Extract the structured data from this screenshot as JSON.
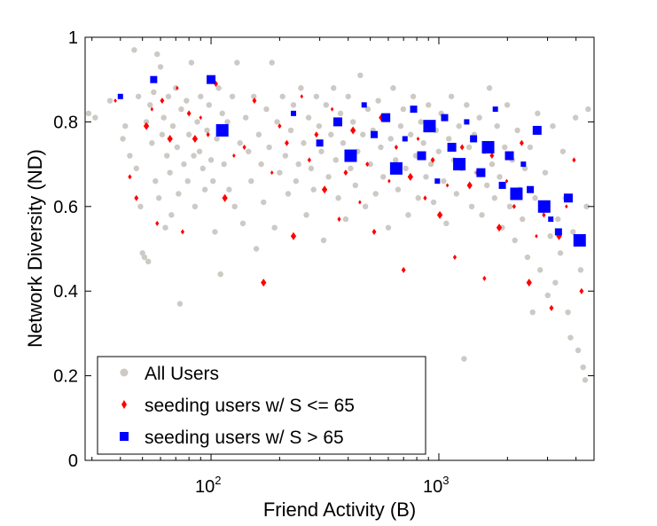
{
  "chart_data": {
    "type": "scatter",
    "title": "",
    "xlabel": "Friend Activity (B)",
    "ylabel": "Network Diversity (ND)",
    "xscale": "log",
    "xlim": [
      28,
      4800
    ],
    "ylim": [
      0,
      1
    ],
    "grid": false,
    "legend_position": "bottom-left",
    "xticks": [
      {
        "base": "10",
        "exp": "2",
        "value": 100
      },
      {
        "base": "10",
        "exp": "3",
        "value": 1000
      }
    ],
    "yticks": [
      {
        "label": "0",
        "value": 0
      },
      {
        "label": "0.2",
        "value": 0.2
      },
      {
        "label": "0.4",
        "value": 0.4
      },
      {
        "label": "0.6",
        "value": 0.6
      },
      {
        "label": "0.8",
        "value": 0.8
      },
      {
        "label": "1",
        "value": 1
      }
    ],
    "series": [
      {
        "name": "All Users",
        "marker": "circle",
        "color": "#cdc9c4",
        "points": [
          [
            29,
            0.82
          ],
          [
            31,
            0.81
          ],
          [
            36,
            0.85
          ],
          [
            41,
            0.76
          ],
          [
            42,
            0.79
          ],
          [
            44,
            0.72
          ],
          [
            46,
            0.97
          ],
          [
            47,
            0.69
          ],
          [
            48,
            0.86
          ],
          [
            49,
            0.6
          ],
          [
            50,
            0.49
          ],
          [
            51,
            0.48
          ],
          [
            52,
            0.8
          ],
          [
            53,
            0.47
          ],
          [
            54,
            0.84
          ],
          [
            55,
            0.75
          ],
          [
            56,
            0.87
          ],
          [
            57,
            0.66
          ],
          [
            58,
            0.96
          ],
          [
            59,
            0.62
          ],
          [
            60,
            0.93
          ],
          [
            61,
            0.77
          ],
          [
            62,
            0.81
          ],
          [
            63,
            0.55
          ],
          [
            64,
            0.72
          ],
          [
            65,
            0.86
          ],
          [
            66,
            0.68
          ],
          [
            67,
            0.58
          ],
          [
            68,
            0.79
          ],
          [
            70,
            0.88
          ],
          [
            71,
            0.74
          ],
          [
            72,
            0.63
          ],
          [
            73,
            0.37
          ],
          [
            74,
            0.83
          ],
          [
            76,
            0.7
          ],
          [
            78,
            0.85
          ],
          [
            79,
            0.66
          ],
          [
            80,
            0.77
          ],
          [
            82,
            0.94
          ],
          [
            84,
            0.72
          ],
          [
            85,
            0.6
          ],
          [
            87,
            0.8
          ],
          [
            89,
            0.73
          ],
          [
            90,
            0.86
          ],
          [
            92,
            0.69
          ],
          [
            94,
            0.64
          ],
          [
            96,
            0.78
          ],
          [
            98,
            0.84
          ],
          [
            100,
            0.71
          ],
          [
            102,
            0.66
          ],
          [
            104,
            0.54
          ],
          [
            106,
            0.76
          ],
          [
            108,
            0.88
          ],
          [
            110,
            0.44
          ],
          [
            112,
            0.82
          ],
          [
            114,
            0.7
          ],
          [
            118,
            0.8
          ],
          [
            120,
            0.64
          ],
          [
            124,
            0.86
          ],
          [
            127,
            0.6
          ],
          [
            130,
            0.94
          ],
          [
            134,
            0.75
          ],
          [
            138,
            0.56
          ],
          [
            142,
            0.81
          ],
          [
            146,
            0.73
          ],
          [
            150,
            0.66
          ],
          [
            154,
            0.86
          ],
          [
            158,
            0.5
          ],
          [
            162,
            0.77
          ],
          [
            166,
            0.7
          ],
          [
            170,
            0.61
          ],
          [
            175,
            0.83
          ],
          [
            180,
            0.74
          ],
          [
            185,
            0.94
          ],
          [
            190,
            0.55
          ],
          [
            195,
            0.8
          ],
          [
            200,
            0.68
          ],
          [
            206,
            0.86
          ],
          [
            212,
            0.72
          ],
          [
            218,
            0.63
          ],
          [
            224,
            0.78
          ],
          [
            230,
            0.84
          ],
          [
            236,
            0.66
          ],
          [
            242,
            0.7
          ],
          [
            248,
            0.88
          ],
          [
            255,
            0.75
          ],
          [
            262,
            0.58
          ],
          [
            268,
            0.81
          ],
          [
            275,
            0.69
          ],
          [
            282,
            0.64
          ],
          [
            290,
            0.86
          ],
          [
            298,
            0.79
          ],
          [
            305,
            0.73
          ],
          [
            312,
            0.52
          ],
          [
            320,
            0.84
          ],
          [
            328,
            0.67
          ],
          [
            336,
            0.77
          ],
          [
            345,
            0.88
          ],
          [
            353,
            0.71
          ],
          [
            362,
            0.62
          ],
          [
            370,
            0.82
          ],
          [
            380,
            0.75
          ],
          [
            390,
            0.57
          ],
          [
            400,
            0.86
          ],
          [
            410,
            0.69
          ],
          [
            420,
            0.8
          ],
          [
            430,
            0.65
          ],
          [
            440,
            0.73
          ],
          [
            452,
            0.91
          ],
          [
            464,
            0.77
          ],
          [
            476,
            0.6
          ],
          [
            488,
            0.83
          ],
          [
            500,
            0.7
          ],
          [
            514,
            0.78
          ],
          [
            528,
            0.63
          ],
          [
            542,
            0.85
          ],
          [
            556,
            0.74
          ],
          [
            570,
            0.67
          ],
          [
            585,
            0.81
          ],
          [
            600,
            0.55
          ],
          [
            615,
            0.76
          ],
          [
            630,
            0.88
          ],
          [
            646,
            0.71
          ],
          [
            662,
            0.64
          ],
          [
            680,
            0.79
          ],
          [
            698,
            0.83
          ],
          [
            716,
            0.69
          ],
          [
            734,
            0.58
          ],
          [
            752,
            0.77
          ],
          [
            772,
            0.86
          ],
          [
            792,
            0.72
          ],
          [
            812,
            0.62
          ],
          [
            834,
            0.8
          ],
          [
            856,
            0.75
          ],
          [
            878,
            0.67
          ],
          [
            900,
            0.84
          ],
          [
            924,
            0.7
          ],
          [
            948,
            0.61
          ],
          [
            972,
            0.78
          ],
          [
            998,
            0.73
          ],
          [
            1024,
            0.82
          ],
          [
            1050,
            0.66
          ],
          [
            1078,
            0.56
          ],
          [
            1106,
            0.76
          ],
          [
            1135,
            0.86
          ],
          [
            1164,
            0.71
          ],
          [
            1195,
            0.63
          ],
          [
            1226,
            0.79
          ],
          [
            1258,
            0.69
          ],
          [
            1290,
            0.24
          ],
          [
            1324,
            0.84
          ],
          [
            1358,
            0.74
          ],
          [
            1394,
            0.6
          ],
          [
            1430,
            0.77
          ],
          [
            1468,
            0.68
          ],
          [
            1506,
            0.81
          ],
          [
            1545,
            0.58
          ],
          [
            1585,
            0.73
          ],
          [
            1626,
            0.65
          ],
          [
            1668,
            0.88
          ],
          [
            1712,
            0.7
          ],
          [
            1756,
            0.62
          ],
          [
            1802,
            0.79
          ],
          [
            1848,
            0.67
          ],
          [
            1896,
            0.55
          ],
          [
            1946,
            0.74
          ],
          [
            1996,
            0.84
          ],
          [
            2048,
            0.6
          ],
          [
            2100,
            0.71
          ],
          [
            2156,
            0.52
          ],
          [
            2212,
            0.78
          ],
          [
            2268,
            0.64
          ],
          [
            2328,
            0.57
          ],
          [
            2388,
            0.69
          ],
          [
            2450,
            0.48
          ],
          [
            2514,
            0.74
          ],
          [
            2580,
            0.35
          ],
          [
            2646,
            0.62
          ],
          [
            2714,
            0.82
          ],
          [
            2784,
            0.45
          ],
          [
            2856,
            0.59
          ],
          [
            2930,
            0.68
          ],
          [
            3006,
            0.39
          ],
          [
            3084,
            0.53
          ],
          [
            3164,
            0.79
          ],
          [
            3246,
            0.42
          ],
          [
            3330,
            0.57
          ],
          [
            3416,
            0.49
          ],
          [
            3504,
            0.73
          ],
          [
            3594,
            0.62
          ],
          [
            3688,
            0.35
          ],
          [
            3784,
            0.29
          ],
          [
            3882,
            0.54
          ],
          [
            3982,
            0.81
          ],
          [
            4086,
            0.26
          ],
          [
            4192,
            0.45
          ],
          [
            4300,
            0.22
          ],
          [
            4390,
            0.19
          ],
          [
            4450,
            0.6
          ],
          [
            4520,
            0.83
          ]
        ]
      },
      {
        "name": "seeding users w/ S <= 65",
        "marker": "diamond",
        "color": "#ff0000",
        "points": [
          [
            38,
            0.85
          ],
          [
            44,
            0.67
          ],
          [
            47,
            0.62
          ],
          [
            52,
            0.79
          ],
          [
            55,
            0.83
          ],
          [
            58,
            0.56
          ],
          [
            61,
            0.85
          ],
          [
            66,
            0.76
          ],
          [
            71,
            0.88
          ],
          [
            75,
            0.54
          ],
          [
            80,
            0.82
          ],
          [
            85,
            0.76
          ],
          [
            90,
            0.81
          ],
          [
            97,
            0.77
          ],
          [
            105,
            0.89
          ],
          [
            115,
            0.62
          ],
          [
            126,
            0.72
          ],
          [
            140,
            0.74
          ],
          [
            155,
            0.85
          ],
          [
            170,
            0.42
          ],
          [
            185,
            0.68
          ],
          [
            200,
            0.79
          ],
          [
            215,
            0.75
          ],
          [
            230,
            0.53
          ],
          [
            250,
            0.86
          ],
          [
            270,
            0.71
          ],
          [
            290,
            0.77
          ],
          [
            315,
            0.64
          ],
          [
            340,
            0.83
          ],
          [
            365,
            0.57
          ],
          [
            390,
            0.68
          ],
          [
            420,
            0.78
          ],
          [
            450,
            0.61
          ],
          [
            485,
            0.7
          ],
          [
            520,
            0.54
          ],
          [
            560,
            0.81
          ],
          [
            605,
            0.66
          ],
          [
            650,
            0.74
          ],
          [
            700,
            0.45
          ],
          [
            750,
            0.67
          ],
          [
            810,
            0.76
          ],
          [
            870,
            0.62
          ],
          [
            940,
            0.71
          ],
          [
            1010,
            0.58
          ],
          [
            1090,
            0.65
          ],
          [
            1175,
            0.48
          ],
          [
            1265,
            0.74
          ],
          [
            1365,
            0.65
          ],
          [
            1470,
            0.68
          ],
          [
            1585,
            0.43
          ],
          [
            1710,
            0.72
          ],
          [
            1840,
            0.55
          ],
          [
            1985,
            0.66
          ],
          [
            2140,
            0.6
          ],
          [
            2310,
            0.75
          ],
          [
            2490,
            0.42
          ],
          [
            2680,
            0.53
          ],
          [
            2890,
            0.58
          ],
          [
            3120,
            0.36
          ],
          [
            3370,
            0.53
          ],
          [
            3630,
            0.6
          ],
          [
            3920,
            0.71
          ],
          [
            4230,
            0.4
          ]
        ]
      },
      {
        "name": "seeding users w/ S > 65",
        "marker": "square",
        "color": "#0000ff",
        "points": [
          [
            40,
            0.86
          ],
          [
            56,
            0.9
          ],
          [
            100,
            0.9
          ],
          [
            112,
            0.78
          ],
          [
            230,
            0.82
          ],
          [
            300,
            0.75
          ],
          [
            360,
            0.8
          ],
          [
            410,
            0.72
          ],
          [
            470,
            0.84
          ],
          [
            520,
            0.77
          ],
          [
            585,
            0.81
          ],
          [
            650,
            0.69
          ],
          [
            710,
            0.76
          ],
          [
            775,
            0.83
          ],
          [
            840,
            0.72
          ],
          [
            910,
            0.79
          ],
          [
            985,
            0.66
          ],
          [
            1060,
            0.81
          ],
          [
            1140,
            0.74
          ],
          [
            1230,
            0.7
          ],
          [
            1325,
            0.8
          ],
          [
            1420,
            0.76
          ],
          [
            1530,
            0.68
          ],
          [
            1645,
            0.74
          ],
          [
            1770,
            0.83
          ],
          [
            1900,
            0.65
          ],
          [
            2040,
            0.72
          ],
          [
            2190,
            0.63
          ],
          [
            2350,
            0.7
          ],
          [
            2520,
            0.64
          ],
          [
            2700,
            0.78
          ],
          [
            2900,
            0.6
          ],
          [
            3100,
            0.57
          ],
          [
            3350,
            0.54
          ],
          [
            3700,
            0.62
          ],
          [
            4150,
            0.52
          ]
        ]
      }
    ]
  }
}
